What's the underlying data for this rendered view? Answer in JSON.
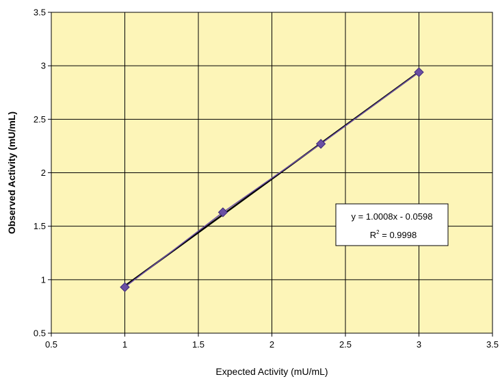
{
  "chart_data": {
    "type": "scatter",
    "title": "",
    "xlabel": "Expected Activity (mU/mL)",
    "ylabel": "Observed Activity (mU/mL)",
    "xlim": [
      0.5,
      3.5
    ],
    "ylim": [
      0.5,
      3.5
    ],
    "x_ticks": [
      0.5,
      1,
      1.5,
      2,
      2.5,
      3,
      3.5
    ],
    "y_ticks": [
      0.5,
      1,
      1.5,
      2,
      2.5,
      3,
      3.5
    ],
    "x_tick_labels": [
      "0.5",
      "1",
      "1.5",
      "2",
      "2.5",
      "3",
      "3.5"
    ],
    "y_tick_labels": [
      "0.5",
      "1",
      "1.5",
      "2",
      "2.5",
      "3",
      "3.5"
    ],
    "grid": true,
    "series": [
      {
        "x": [
          1.0,
          1.667,
          2.333,
          3.0
        ],
        "y": [
          0.93,
          1.63,
          2.27,
          2.94
        ],
        "marker": "diamond",
        "color": "#6a4fa3"
      }
    ],
    "trendline": {
      "type": "linear",
      "slope": 1.0008,
      "intercept": -0.0598,
      "x_range": [
        1.0,
        3.0
      ],
      "color": "#000000",
      "equation_label": "y = 1.0008x - 0.0598",
      "r2_prefix": "R",
      "r2_exponent": "2",
      "r2_value": " = 0.9998"
    },
    "plot_background": "#fdf5b8"
  }
}
